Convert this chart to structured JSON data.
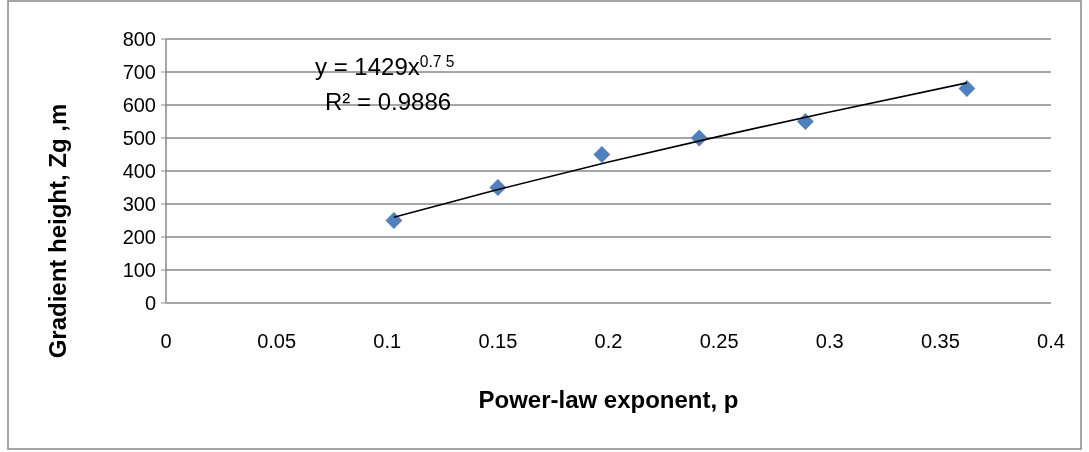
{
  "chart_data": {
    "type": "scatter",
    "xlabel": "Power-law exponent, p",
    "ylabel": "Gradient height, Zg ,m",
    "xlim": [
      0,
      0.4
    ],
    "xticks": [
      0,
      0.05,
      0.1,
      0.15,
      0.2,
      0.25,
      0.3,
      0.35,
      0.4
    ],
    "ylim": [
      0,
      800
    ],
    "yticks": [
      0,
      100,
      200,
      300,
      400,
      500,
      600,
      700,
      800
    ],
    "grid": "y",
    "series": [
      {
        "marker": "diamond",
        "color": "#4f81bd",
        "x": [
          0.103,
          0.15,
          0.197,
          0.241,
          0.289,
          0.362
        ],
        "values": [
          250,
          350,
          450,
          500,
          550,
          650
        ]
      },
      {
        "type": "line",
        "color": "#000000",
        "x": [
          0.103,
          0.15,
          0.2,
          0.25,
          0.3,
          0.362
        ],
        "values": [
          260,
          344,
          427,
          505,
          579,
          667
        ]
      }
    ],
    "annotations": [
      "y = 1429x$^{0.7 5}$",
      "R² = 0.9886"
    ]
  }
}
